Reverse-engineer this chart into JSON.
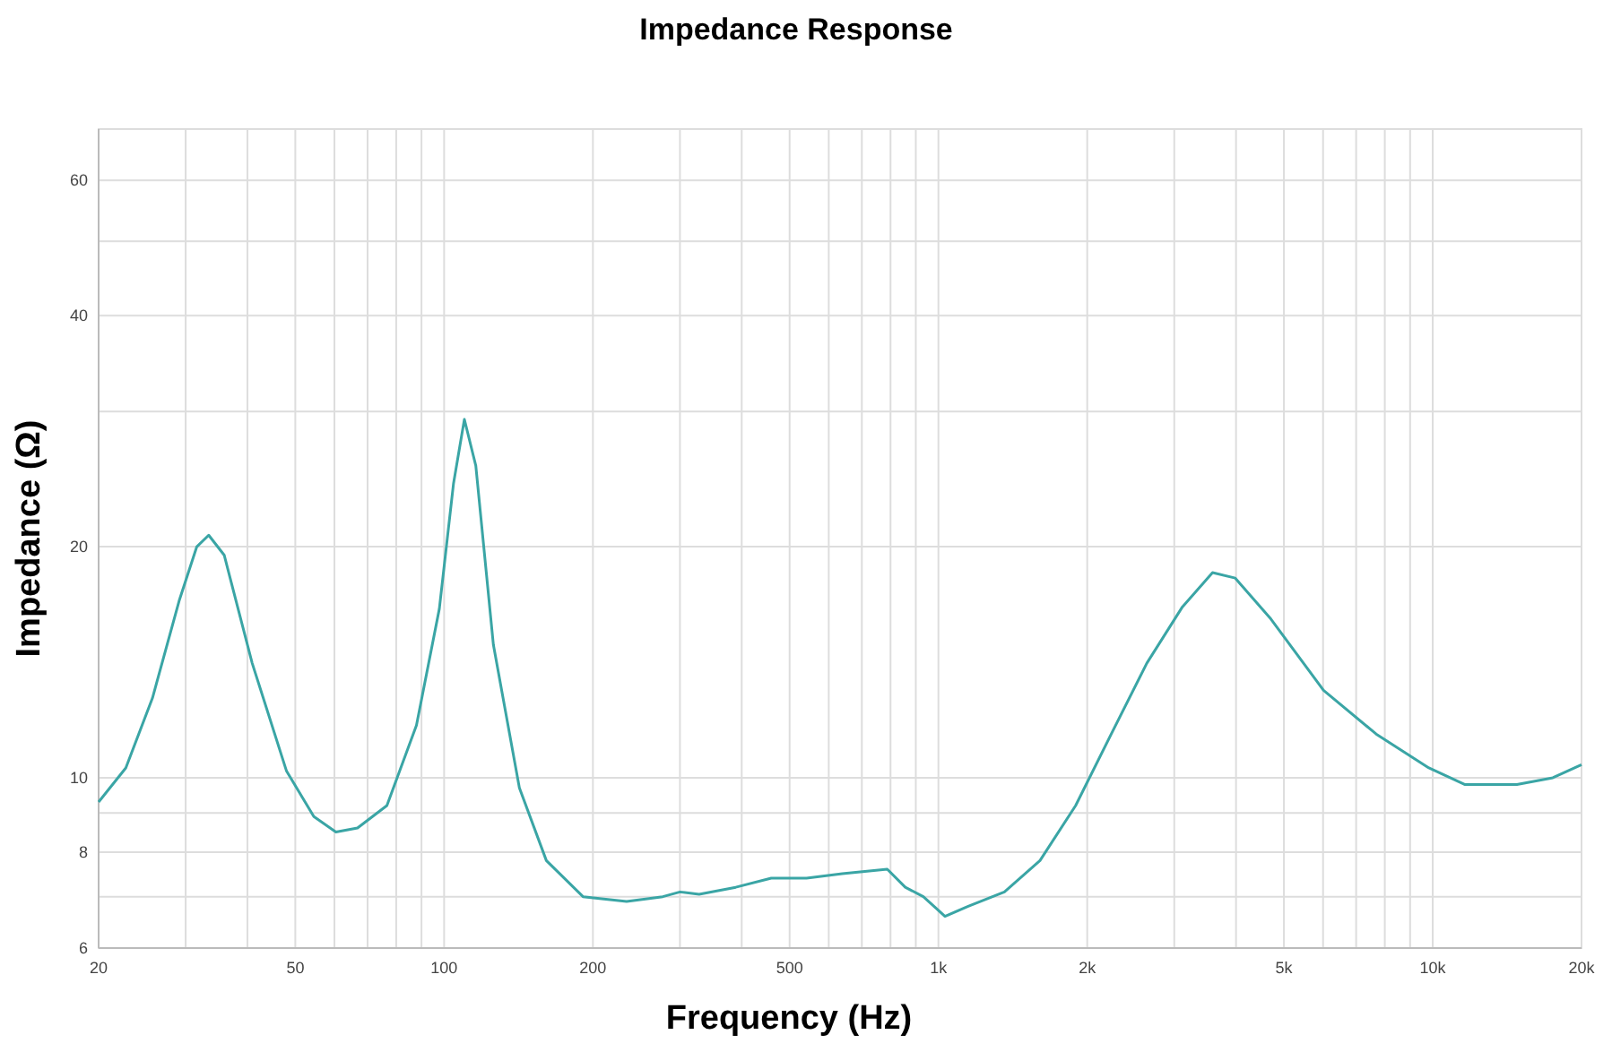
{
  "chart_data": {
    "type": "line",
    "title": "Impedance Response",
    "xlabel": "Frequency (Hz)",
    "ylabel": "Impedance (Ω)",
    "log": "xy",
    "grid": true,
    "marker": "none",
    "line_style": "solid",
    "xlim": [
      20,
      20000
    ],
    "ylim": [
      6,
      70
    ],
    "xticks": [
      20,
      {
        "value": 30,
        "label": null
      },
      {
        "value": 40,
        "label": null
      },
      50,
      {
        "value": 60,
        "label": null
      },
      {
        "value": 70,
        "label": null
      },
      {
        "value": 80,
        "label": null
      },
      {
        "value": 90,
        "label": null
      },
      100,
      200,
      {
        "value": 300,
        "label": null
      },
      {
        "value": 400,
        "label": null
      },
      500,
      {
        "value": 600,
        "label": null
      },
      {
        "value": 700,
        "label": null
      },
      {
        "value": 800,
        "label": null
      },
      {
        "value": 900,
        "label": null
      },
      {
        "value": 1000,
        "label": "1k"
      },
      {
        "value": 2000,
        "label": "2k"
      },
      {
        "value": 3000,
        "label": null
      },
      {
        "value": 4000,
        "label": null
      },
      {
        "value": 5000,
        "label": "5k"
      },
      {
        "value": 6000,
        "label": null
      },
      {
        "value": 7000,
        "label": null
      },
      {
        "value": 8000,
        "label": null
      },
      {
        "value": 9000,
        "label": null
      },
      {
        "value": 10000,
        "label": "10k"
      },
      {
        "value": 20000,
        "label": "20k"
      }
    ],
    "yticks": [
      6,
      {
        "value": 7,
        "label": null
      },
      8,
      {
        "value": 9,
        "label": null
      },
      10,
      20,
      {
        "value": 30,
        "label": null
      },
      40,
      {
        "value": 50,
        "label": null
      },
      60
    ],
    "series": [
      {
        "color": "#3aa5a5",
        "x": [
          20,
          22.7,
          25.7,
          29.1,
          31.6,
          33.4,
          35.9,
          40.9,
          48,
          54.5,
          60.4,
          66.8,
          76.6,
          87.9,
          97.8,
          104.5,
          109.9,
          115.9,
          125.8,
          142,
          161,
          191,
          234,
          277,
          300,
          328,
          389,
          459,
          541,
          639,
          788,
          857,
          932,
          1031,
          1149,
          1360,
          1605,
          1895,
          2237,
          2640,
          3117,
          3586,
          3986,
          4706,
          6013,
          7685,
          9821,
          11600,
          14800,
          17500,
          20000
        ],
        "values": [
          9.3,
          10.3,
          12.7,
          17,
          20,
          20.7,
          19.5,
          14.1,
          10.2,
          8.9,
          8.5,
          8.6,
          9.2,
          11.7,
          16.6,
          24.2,
          29.3,
          25.5,
          14.9,
          9.7,
          7.8,
          7,
          6.9,
          7,
          7.1,
          7.05,
          7.2,
          7.4,
          7.4,
          7.5,
          7.6,
          7.2,
          7,
          6.6,
          6.8,
          7.1,
          7.8,
          9.2,
          11.4,
          14.1,
          16.7,
          18.5,
          18.2,
          16.1,
          13,
          11.4,
          10.3,
          9.8,
          9.8,
          10,
          10.4
        ]
      }
    ]
  }
}
